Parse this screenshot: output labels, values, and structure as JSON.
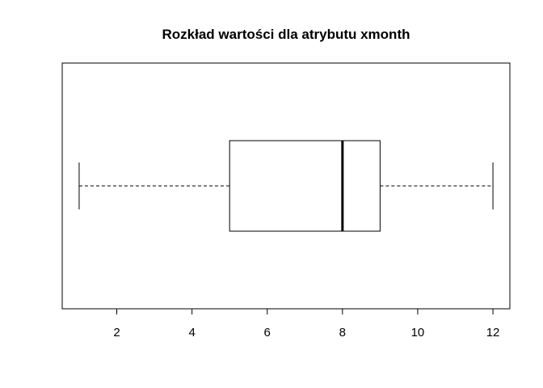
{
  "chart_data": {
    "type": "boxplot",
    "title": "Rozkład wartości dla atrybutu xmonth",
    "xlabel": "",
    "ylabel": "",
    "orientation": "horizontal",
    "xlim": [
      0.55,
      12.45
    ],
    "ticks": [
      2,
      4,
      6,
      8,
      10,
      12
    ],
    "tick_labels": [
      "2",
      "4",
      "6",
      "8",
      "10",
      "12"
    ],
    "box": {
      "whisker_low": 1,
      "q1": 5,
      "median": 8,
      "q3": 9,
      "whisker_high": 12
    },
    "grid": false,
    "legend": "none",
    "colors": {
      "line": "#000000",
      "box_fill": "#ffffff"
    }
  }
}
